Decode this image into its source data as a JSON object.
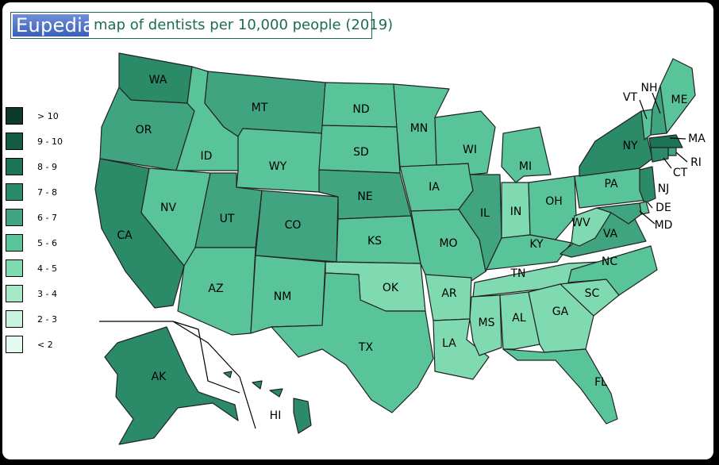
{
  "title": {
    "logo": "Eupedia",
    "text": "map of dentists per 10,000 people (2019)"
  },
  "legend": [
    {
      "label": "> 10",
      "color": "#0e3a2b"
    },
    {
      "label": "9 - 10",
      "color": "#145a44"
    },
    {
      "label": "8 - 9",
      "color": "#1c7355"
    },
    {
      "label": "7 - 8",
      "color": "#2b8a67"
    },
    {
      "label": "6 - 7",
      "color": "#3fa47f"
    },
    {
      "label": "5 - 6",
      "color": "#59c39a"
    },
    {
      "label": "4 - 5",
      "color": "#7fd9b1"
    },
    {
      "label": "3 - 4",
      "color": "#a4e8c8"
    },
    {
      "label": "2 - 3",
      "color": "#c8f3de"
    },
    {
      "label": "< 2",
      "color": "#e3faef"
    }
  ],
  "states": {
    "WA": {
      "bin": "7 - 8"
    },
    "OR": {
      "bin": "6 - 7"
    },
    "CA": {
      "bin": "7 - 8"
    },
    "ID": {
      "bin": "5 - 6"
    },
    "NV": {
      "bin": "5 - 6"
    },
    "MT": {
      "bin": "6 - 7"
    },
    "WY": {
      "bin": "5 - 6"
    },
    "UT": {
      "bin": "6 - 7"
    },
    "AZ": {
      "bin": "5 - 6"
    },
    "CO": {
      "bin": "6 - 7"
    },
    "NM": {
      "bin": "5 - 6"
    },
    "ND": {
      "bin": "5 - 6"
    },
    "SD": {
      "bin": "5 - 6"
    },
    "NE": {
      "bin": "6 - 7"
    },
    "KS": {
      "bin": "5 - 6"
    },
    "OK": {
      "bin": "4 - 5"
    },
    "TX": {
      "bin": "5 - 6"
    },
    "MN": {
      "bin": "5 - 6"
    },
    "IA": {
      "bin": "5 - 6"
    },
    "MO": {
      "bin": "5 - 6"
    },
    "AR": {
      "bin": "4 - 5"
    },
    "LA": {
      "bin": "4 - 5"
    },
    "WI": {
      "bin": "5 - 6"
    },
    "IL": {
      "bin": "6 - 7"
    },
    "MI": {
      "bin": "5 - 6"
    },
    "IN": {
      "bin": "4 - 5"
    },
    "OH": {
      "bin": "5 - 6"
    },
    "KY": {
      "bin": "5 - 6"
    },
    "TN": {
      "bin": "4 - 5"
    },
    "MS": {
      "bin": "4 - 5"
    },
    "AL": {
      "bin": "4 - 5"
    },
    "GA": {
      "bin": "4 - 5"
    },
    "FL": {
      "bin": "5 - 6"
    },
    "SC": {
      "bin": "4 - 5"
    },
    "NC": {
      "bin": "5 - 6"
    },
    "VA": {
      "bin": "6 - 7"
    },
    "WV": {
      "bin": "4 - 5"
    },
    "PA": {
      "bin": "5 - 6"
    },
    "NY": {
      "bin": "7 - 8"
    },
    "VT": {
      "bin": "5 - 6"
    },
    "NH": {
      "bin": "6 - 7"
    },
    "ME": {
      "bin": "5 - 6"
    },
    "MA": {
      "bin": "8 - 9"
    },
    "RI": {
      "bin": "6 - 7"
    },
    "CT": {
      "bin": "7 - 8"
    },
    "NJ": {
      "bin": "7 - 8"
    },
    "DE": {
      "bin": "5 - 6"
    },
    "MD": {
      "bin": "6 - 7"
    },
    "AK": {
      "bin": "7 - 8"
    },
    "HI": {
      "bin": "7 - 8"
    }
  }
}
